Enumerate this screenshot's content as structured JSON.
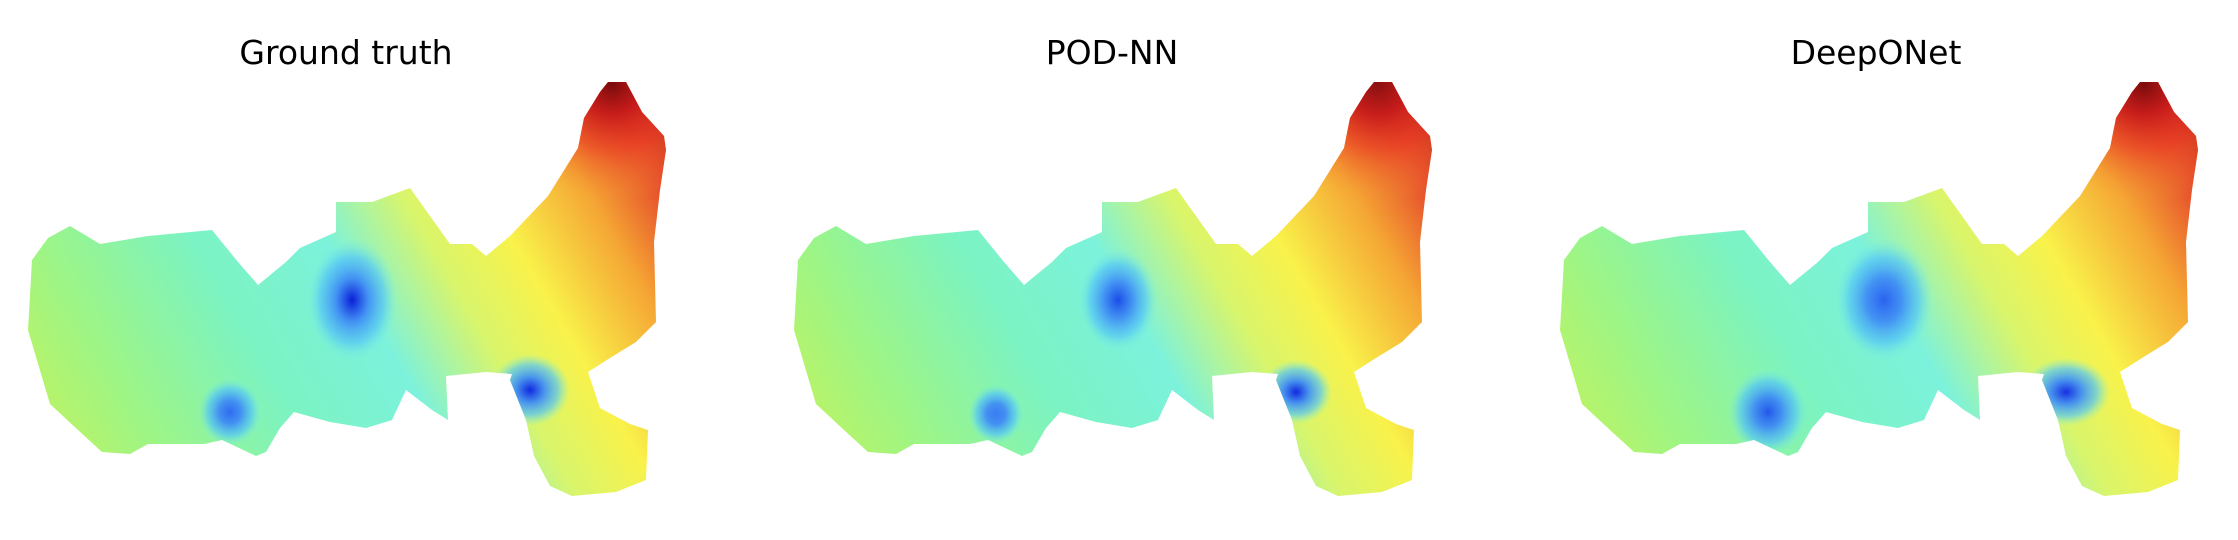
{
  "chart_data": [
    {
      "type": "heatmap",
      "title": "Ground truth",
      "colormap": "jet",
      "extremes": [
        {
          "kind": "min",
          "color": "#0a1fd8"
        },
        {
          "kind": "min",
          "color": "#1028e0"
        },
        {
          "kind": "min",
          "color": "#2f6cf0"
        },
        {
          "kind": "max",
          "color": "#7a0b0b"
        }
      ]
    },
    {
      "type": "heatmap",
      "title": "POD-NN",
      "colormap": "jet",
      "extremes": [
        {
          "kind": "min",
          "color": "#1b4de6"
        },
        {
          "kind": "min",
          "color": "#1028e0"
        },
        {
          "kind": "min",
          "color": "#3a7cf2"
        },
        {
          "kind": "max",
          "color": "#8a1010"
        }
      ]
    },
    {
      "type": "heatmap",
      "title": "DeepONet",
      "colormap": "jet",
      "extremes": [
        {
          "kind": "min",
          "color": "#2a63ee"
        },
        {
          "kind": "min",
          "color": "#1530e2"
        },
        {
          "kind": "min",
          "color": "#2358ea"
        },
        {
          "kind": "max",
          "color": "#7a0b0b"
        }
      ]
    }
  ]
}
